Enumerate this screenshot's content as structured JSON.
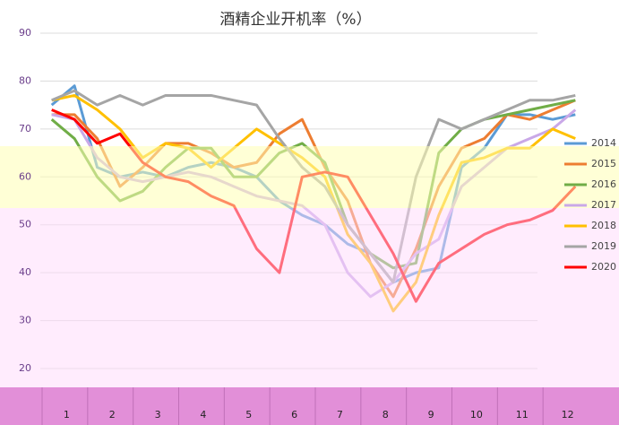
{
  "chart_data": {
    "type": "line",
    "title": "酒精企业开机率（%）",
    "categories": [
      null,
      "1",
      null,
      "2",
      null,
      "3",
      null,
      "4",
      null,
      "5",
      null,
      "6",
      null,
      "7",
      null,
      "8",
      null,
      "9",
      null,
      "10",
      null,
      "11",
      null,
      "12"
    ],
    "ylim": [
      20,
      90
    ],
    "yticks": [
      20,
      30,
      40,
      50,
      60,
      70,
      80,
      90
    ],
    "grid": true,
    "series": [
      {
        "name": "2014",
        "color": "#5b9bd5",
        "values": [
          75,
          79,
          62,
          60,
          61,
          60,
          62,
          63,
          62,
          60,
          55,
          52,
          50,
          46,
          44,
          38,
          40,
          41,
          62,
          66,
          73,
          73,
          72,
          73
        ]
      },
      {
        "name": "2015",
        "color": "#ed7d31",
        "values": [
          73,
          73,
          68,
          58,
          62,
          67,
          67,
          65,
          62,
          63,
          69,
          72,
          62,
          55,
          42,
          35,
          45,
          58,
          66,
          68,
          73,
          72,
          74,
          76
        ]
      },
      {
        "name": "2016",
        "color": "#70ad47",
        "values": [
          72,
          68,
          60,
          55,
          57,
          62,
          66,
          66,
          60,
          60,
          65,
          67,
          63,
          50,
          44,
          41,
          42,
          65,
          70,
          72,
          73,
          74,
          75,
          76
        ]
      },
      {
        "name": "2017",
        "color": "#c9a8e8",
        "values": [
          73,
          72,
          64,
          60,
          59,
          60,
          61,
          60,
          58,
          56,
          55,
          54,
          50,
          40,
          35,
          38,
          44,
          47,
          58,
          62,
          66,
          68,
          70,
          74
        ]
      },
      {
        "name": "2018",
        "color": "#ffc000",
        "values": [
          76,
          77,
          74,
          70,
          64,
          67,
          66,
          62,
          66,
          70,
          67,
          64,
          60,
          48,
          42,
          32,
          38,
          52,
          63,
          64,
          66,
          66,
          70,
          68
        ]
      },
      {
        "name": "2019",
        "color": "#a5a5a5",
        "values": [
          76,
          78,
          75,
          77,
          75,
          77,
          77,
          77,
          76,
          75,
          68,
          62,
          58,
          50,
          44,
          38,
          60,
          72,
          70,
          72,
          74,
          76,
          76,
          77
        ]
      },
      {
        "name": "2020",
        "color": "#ff0000",
        "values": [
          74,
          72,
          67,
          69,
          63,
          60,
          59,
          56,
          54,
          45,
          40,
          60,
          61,
          60,
          52,
          44,
          34,
          42,
          45,
          48,
          50,
          51,
          53,
          58
        ]
      }
    ]
  }
}
